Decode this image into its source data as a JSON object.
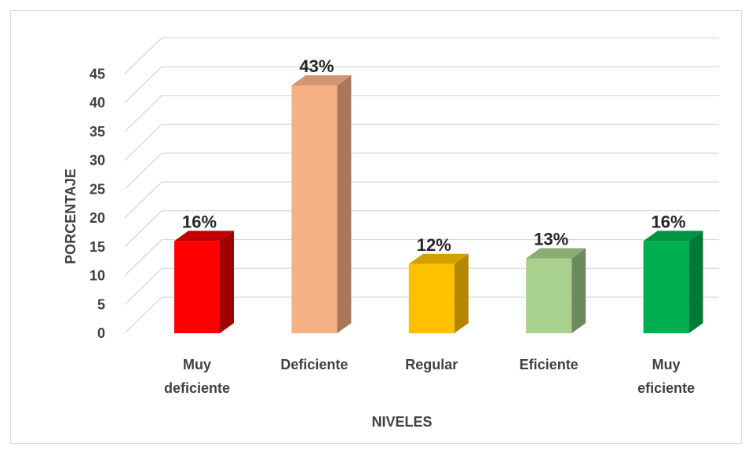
{
  "chart_data": {
    "type": "bar",
    "style": "3d-column",
    "categories": [
      "Muy deficiente",
      "Deficiente",
      "Regular",
      "Eficiente",
      "Muy eficiente"
    ],
    "category_lines": [
      [
        "Muy",
        "deficiente"
      ],
      [
        "Deficiente"
      ],
      [
        "Regular"
      ],
      [
        "Eficiente"
      ],
      [
        "Muy",
        "eficiente"
      ]
    ],
    "values": [
      16,
      43,
      12,
      13,
      16
    ],
    "data_labels": [
      "16%",
      "43%",
      "12%",
      "13%",
      "16%"
    ],
    "colors": [
      {
        "front": "#ff0000",
        "side": "#a00000",
        "top": "#c00000"
      },
      {
        "front": "#f4b183",
        "side": "#a9775a",
        "top": "#d29672"
      },
      {
        "front": "#ffc000",
        "side": "#b38600",
        "top": "#d4a000"
      },
      {
        "front": "#a9d18e",
        "side": "#6e8a5c",
        "top": "#8cab75"
      },
      {
        "front": "#00b050",
        "side": "#007a37",
        "top": "#009442"
      }
    ],
    "xlabel": "NIVELES",
    "ylabel": "PORCENTAJE",
    "ylim": [
      0,
      45
    ],
    "yticks": [
      0,
      5,
      10,
      15,
      20,
      25,
      30,
      35,
      40,
      45
    ],
    "grid": true,
    "legend": "none"
  }
}
